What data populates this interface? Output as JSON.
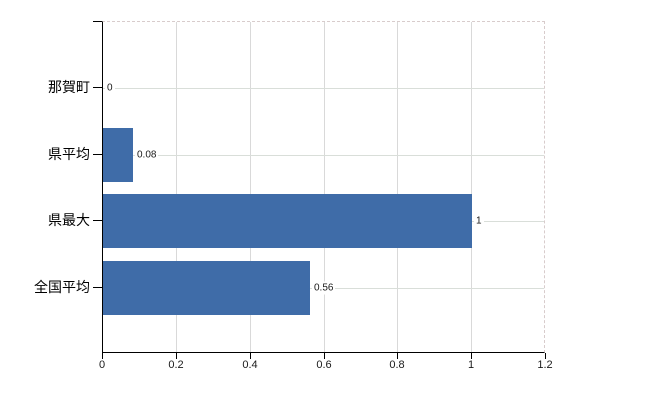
{
  "chart_data": {
    "type": "bar",
    "orientation": "horizontal",
    "title": "",
    "categories": [
      "那賀町",
      "県平均",
      "県最大",
      "全国平均"
    ],
    "values": [
      0,
      0.08,
      1,
      0.56
    ],
    "value_labels": [
      "0",
      "0.08",
      "1",
      "0.56"
    ],
    "xlim": [
      0,
      1.2
    ],
    "xticks": [
      0,
      0.2,
      0.4,
      0.6,
      0.8,
      1,
      1.2
    ],
    "xtick_labels": [
      "0",
      "0.2",
      "0.4",
      "0.6",
      "0.8",
      "1",
      "1.2"
    ],
    "grid": true,
    "legend": false,
    "colors": {
      "bar": "#3f6ca8",
      "gridline": "#d9d9d9",
      "axis": "#000000",
      "dashed_border": "#d8cccc",
      "text": "#1a1a1a"
    }
  }
}
